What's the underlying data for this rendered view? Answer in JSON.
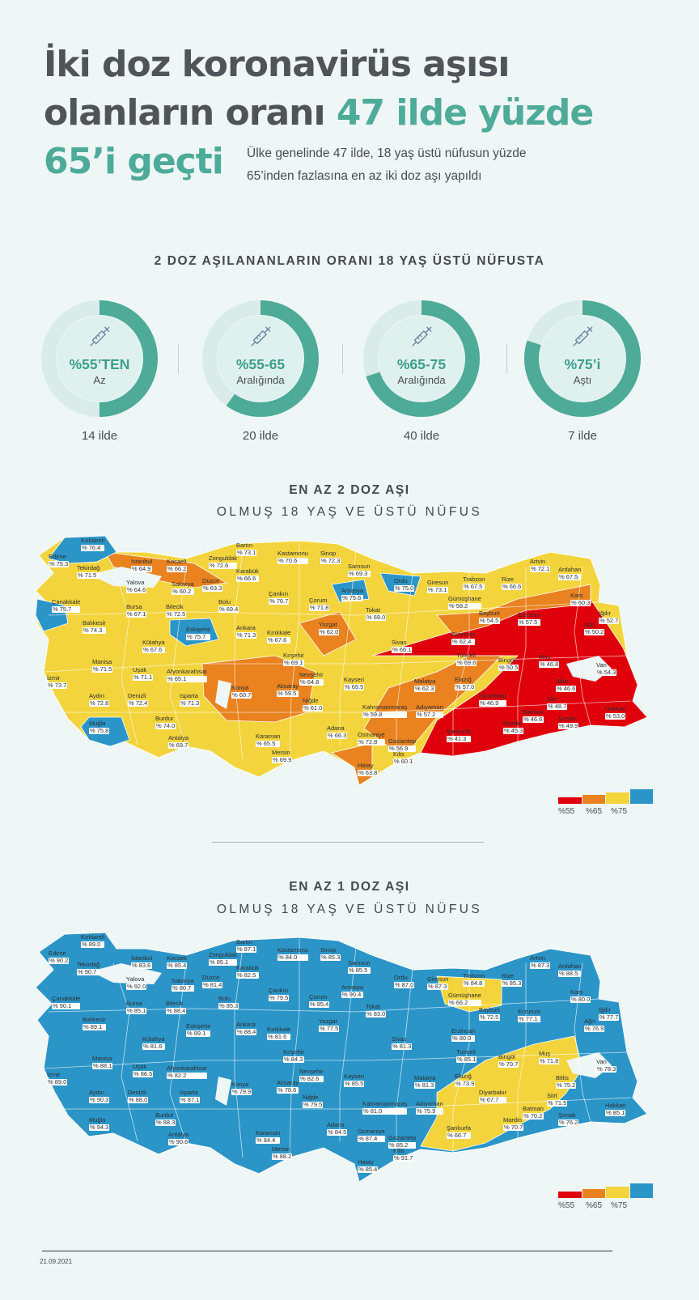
{
  "title": {
    "line1": "İki doz koronavirüs aşısı",
    "line2a": "olanların oranı ",
    "line2b": "47 ilde yüzde",
    "line3": "65’i geçti"
  },
  "lead": "Ülke genelinde 47 ilde, 18 yaş üstü nüfusun yüzde 65’inden fazlasına en az iki doz aşı yapıldı",
  "summary": {
    "title": "2 DOZ AŞILANANLARIN ORANI 18 YAŞ ÜSTÜ NÜFUSTA",
    "items": [
      {
        "pct": "%55’TEN",
        "label": "Az",
        "count": "14 ilde",
        "fill": 0.5
      },
      {
        "pct": "%55-65",
        "label": "Aralığında",
        "count": "20 ilde",
        "fill": 0.6
      },
      {
        "pct": "%65-75",
        "label": "Aralığında",
        "count": "40 ilde",
        "fill": 0.7
      },
      {
        "pct": "%75’i",
        "label": "Aştı",
        "count": "7 ilde",
        "fill": 0.8
      }
    ]
  },
  "map2": {
    "title": "EN AZ 2 DOZ AŞI",
    "subtitle": "OLMUŞ 18 YAŞ VE ÜSTÜ NÜFUS"
  },
  "map1": {
    "title": "EN AZ 1 DOZ AŞI",
    "subtitle": "OLMUŞ 18 YAŞ VE ÜSTÜ NÜFUS"
  },
  "legend": {
    "colors": [
      "#e0000b",
      "#e9821f",
      "#f3d43c",
      "#2b95c8"
    ],
    "ticks": [
      "%55",
      "%65",
      "%75"
    ]
  },
  "colors": {
    "accent": "#4dab98",
    "red": "#e0000b",
    "orange": "#e9821f",
    "yellow": "#f3d43c",
    "blue": "#2b95c8",
    "donut_track": "#d9ecea"
  },
  "date": "21.09.2021",
  "provinces2": [
    {
      "n": "Kırklareli",
      "v": "% 76.4",
      "c": "blue"
    },
    {
      "n": "Edirne",
      "v": "% 75.3",
      "c": "blue"
    },
    {
      "n": "Tekirdağ",
      "v": "% 71.5",
      "c": "yellow"
    },
    {
      "n": "İstanbul",
      "v": "% 64.9",
      "c": "orange"
    },
    {
      "n": "Kocaeli",
      "v": "% 66.2",
      "c": "yellow"
    },
    {
      "n": "Yalova",
      "v": "% 64.6",
      "c": "orange"
    },
    {
      "n": "Sakarya",
      "v": "% 60.2",
      "c": "orange"
    },
    {
      "n": "Düzce",
      "v": "% 63.3",
      "c": "orange"
    },
    {
      "n": "Zonguldak",
      "v": "% 72.6",
      "c": "yellow"
    },
    {
      "n": "Bartın",
      "v": "% 73.1",
      "c": "yellow"
    },
    {
      "n": "Karabük",
      "v": "% 66.6",
      "c": "yellow"
    },
    {
      "n": "Kastamonu",
      "v": "% 70.6",
      "c": "yellow"
    },
    {
      "n": "Sinop",
      "v": "% 72.3",
      "c": "yellow"
    },
    {
      "n": "Samsun",
      "v": "% 69.3",
      "c": "yellow"
    },
    {
      "n": "Ordu",
      "v": "% 75.0",
      "c": "blue"
    },
    {
      "n": "Giresun",
      "v": "% 73.1",
      "c": "yellow"
    },
    {
      "n": "Trabzon",
      "v": "% 67.5",
      "c": "yellow"
    },
    {
      "n": "Rize",
      "v": "% 66.6",
      "c": "yellow"
    },
    {
      "n": "Artvin",
      "v": "% 72.1",
      "c": "yellow"
    },
    {
      "n": "Ardahan",
      "v": "% 67.5",
      "c": "yellow"
    },
    {
      "n": "Çanakkale",
      "v": "% 75.7",
      "c": "blue"
    },
    {
      "n": "Bursa",
      "v": "% 67.1",
      "c": "yellow"
    },
    {
      "n": "Bilecik",
      "v": "% 72.5",
      "c": "yellow"
    },
    {
      "n": "Bolu",
      "v": "% 69.4",
      "c": "yellow"
    },
    {
      "n": "Çankırı",
      "v": "% 70.7",
      "c": "yellow"
    },
    {
      "n": "Çorum",
      "v": "% 71.8",
      "c": "yellow"
    },
    {
      "n": "Amasya",
      "v": "% 75.6",
      "c": "blue"
    },
    {
      "n": "Tokat",
      "v": "% 69.0",
      "c": "yellow"
    },
    {
      "n": "Gümüşhane",
      "v": "% 58.2",
      "c": "orange"
    },
    {
      "n": "Bayburt",
      "v": "% 54.5",
      "c": "red"
    },
    {
      "n": "Erzurum",
      "v": "% 57.5",
      "c": "orange"
    },
    {
      "n": "Kars",
      "v": "% 60.3",
      "c": "orange"
    },
    {
      "n": "Iğdır",
      "v": "% 52.7",
      "c": "red"
    },
    {
      "n": "Ağrı",
      "v": "% 50.2",
      "c": "red"
    },
    {
      "n": "Balıkesir",
      "v": "% 74.3",
      "c": "yellow"
    },
    {
      "n": "Kütahya",
      "v": "% 67.6",
      "c": "yellow"
    },
    {
      "n": "Eskişehir",
      "v": "% 75.7",
      "c": "blue"
    },
    {
      "n": "Ankara",
      "v": "% 71.3",
      "c": "yellow"
    },
    {
      "n": "Kırıkkale",
      "v": "% 67.6",
      "c": "yellow"
    },
    {
      "n": "Yozgat",
      "v": "% 62.0",
      "c": "orange"
    },
    {
      "n": "Sivas",
      "v": "% 66.1",
      "c": "yellow"
    },
    {
      "n": "Erzincan",
      "v": "% 62.4",
      "c": "orange"
    },
    {
      "n": "Tunceli",
      "v": "% 69.6",
      "c": "yellow"
    },
    {
      "n": "Bingöl",
      "v": "% 50.5",
      "c": "red"
    },
    {
      "n": "Muş",
      "v": "% 46.8",
      "c": "red"
    },
    {
      "n": "Van",
      "v": "% 54.3",
      "c": "red"
    },
    {
      "n": "Bitlis",
      "v": "% 46.6",
      "c": "red"
    },
    {
      "n": "Manisa",
      "v": "% 71.5",
      "c": "yellow"
    },
    {
      "n": "İzmir",
      "v": "% 73.7",
      "c": "yellow"
    },
    {
      "n": "Uşak",
      "v": "% 71.1",
      "c": "yellow"
    },
    {
      "n": "Afyonkarahisar",
      "v": "% 65.1",
      "c": "yellow"
    },
    {
      "n": "Kırşehir",
      "v": "% 69.1",
      "c": "yellow"
    },
    {
      "n": "Nevşehir",
      "v": "% 64.8",
      "c": "orange"
    },
    {
      "n": "Aksaray",
      "v": "% 59.5",
      "c": "orange"
    },
    {
      "n": "Kayseri",
      "v": "% 65.5",
      "c": "yellow"
    },
    {
      "n": "Malatya",
      "v": "% 62.3",
      "c": "orange"
    },
    {
      "n": "Elazığ",
      "v": "% 57.0",
      "c": "orange"
    },
    {
      "n": "Diyarbakır",
      "v": "% 46.9",
      "c": "red"
    },
    {
      "n": "Siirt",
      "v": "% 48.7",
      "c": "red"
    },
    {
      "n": "Batman",
      "v": "% 46.6",
      "c": "red"
    },
    {
      "n": "Hakkari",
      "v": "% 53.0",
      "c": "red"
    },
    {
      "n": "Şırnak",
      "v": "% 49.9",
      "c": "red"
    },
    {
      "n": "Mardin",
      "v": "% 45.3",
      "c": "red"
    },
    {
      "n": "Aydın",
      "v": "% 72.8",
      "c": "yellow"
    },
    {
      "n": "Denizli",
      "v": "% 72.4",
      "c": "yellow"
    },
    {
      "n": "Isparta",
      "v": "% 71.3",
      "c": "yellow"
    },
    {
      "n": "Konya",
      "v": "% 60.7",
      "c": "orange"
    },
    {
      "n": "Niğde",
      "v": "% 61.0",
      "c": "orange"
    },
    {
      "n": "Kahramanmaraş",
      "v": "% 59.8",
      "c": "orange"
    },
    {
      "n": "Adıyaman",
      "v": "% 57.2",
      "c": "orange"
    },
    {
      "n": "Şanlıurfa",
      "v": "% 41.3",
      "c": "red"
    },
    {
      "n": "Muğla",
      "v": "% 75.8",
      "c": "blue"
    },
    {
      "n": "Burdur",
      "v": "% 74.0",
      "c": "yellow"
    },
    {
      "n": "Antalya",
      "v": "% 69.7",
      "c": "yellow"
    },
    {
      "n": "Karaman",
      "v": "% 65.5",
      "c": "yellow"
    },
    {
      "n": "Mersin",
      "v": "% 69.9",
      "c": "yellow"
    },
    {
      "n": "Adana",
      "v": "% 66.3",
      "c": "yellow"
    },
    {
      "n": "Osmaniye",
      "v": "% 72.8",
      "c": "yellow"
    },
    {
      "n": "Gaziantep",
      "v": "% 56.9",
      "c": "orange"
    },
    {
      "n": "Kilis",
      "v": "% 60.1",
      "c": "orange"
    },
    {
      "n": "Hatay",
      "v": "% 63.8",
      "c": "orange"
    }
  ],
  "provinces1": [
    {
      "n": "Kırklareli",
      "v": "% 89.0",
      "c": "blue"
    },
    {
      "n": "Edirne",
      "v": "% 90.2",
      "c": "blue"
    },
    {
      "n": "Tekirdağ",
      "v": "% 90.7",
      "c": "blue"
    },
    {
      "n": "İstanbul",
      "v": "% 83.6",
      "c": "blue"
    },
    {
      "n": "Kocaeli",
      "v": "% 85.4",
      "c": "blue"
    },
    {
      "n": "Yalova",
      "v": "% 92.0",
      "c": "blue"
    },
    {
      "n": "Sakarya",
      "v": "% 80.7",
      "c": "blue"
    },
    {
      "n": "Düzce",
      "v": "% 81.4",
      "c": "blue"
    },
    {
      "n": "Zonguldak",
      "v": "% 85.1",
      "c": "blue"
    },
    {
      "n": "Bartın",
      "v": "% 87.1",
      "c": "blue"
    },
    {
      "n": "Karabük",
      "v": "% 82.5",
      "c": "blue"
    },
    {
      "n": "Kastamonu",
      "v": "% 84.0",
      "c": "blue"
    },
    {
      "n": "Sinop",
      "v": "% 85.3",
      "c": "blue"
    },
    {
      "n": "Samsun",
      "v": "% 85.5",
      "c": "blue"
    },
    {
      "n": "Ordu",
      "v": "% 87.0",
      "c": "blue"
    },
    {
      "n": "Giresun",
      "v": "% 87.3",
      "c": "blue"
    },
    {
      "n": "Trabzon",
      "v": "% 84.8",
      "c": "blue"
    },
    {
      "n": "Rize",
      "v": "% 85.3",
      "c": "blue"
    },
    {
      "n": "Artvin",
      "v": "% 87.3",
      "c": "blue"
    },
    {
      "n": "Ardahan",
      "v": "% 88.5",
      "c": "blue"
    },
    {
      "n": "Çanakkale",
      "v": "% 90.1",
      "c": "blue"
    },
    {
      "n": "Bursa",
      "v": "% 85.1",
      "c": "blue"
    },
    {
      "n": "Bilecik",
      "v": "% 88.4",
      "c": "blue"
    },
    {
      "n": "Bolu",
      "v": "% 85.3",
      "c": "blue"
    },
    {
      "n": "Çankırı",
      "v": "% 79.5",
      "c": "blue"
    },
    {
      "n": "Çorum",
      "v": "% 85.4",
      "c": "blue"
    },
    {
      "n": "Amasya",
      "v": "% 90.4",
      "c": "blue"
    },
    {
      "n": "Tokat",
      "v": "% 83.0",
      "c": "blue"
    },
    {
      "n": "Gümüşhane",
      "v": "% 66.2",
      "c": "yellow"
    },
    {
      "n": "Bayburt",
      "v": "% 72.5",
      "c": "yellow"
    },
    {
      "n": "Erzurum",
      "v": "% 77.1",
      "c": "blue"
    },
    {
      "n": "Kars",
      "v": "% 80.0",
      "c": "blue"
    },
    {
      "n": "Iğdır",
      "v": "% 77.7",
      "c": "blue"
    },
    {
      "n": "Ağrı",
      "v": "% 76.9",
      "c": "blue"
    },
    {
      "n": "Balıkesir",
      "v": "% 89.1",
      "c": "blue"
    },
    {
      "n": "Kütahya",
      "v": "% 81.6",
      "c": "blue"
    },
    {
      "n": "Eskişehir",
      "v": "% 89.1",
      "c": "blue"
    },
    {
      "n": "Ankara",
      "v": "% 88.4",
      "c": "blue"
    },
    {
      "n": "Kırıkkale",
      "v": "% 81.6",
      "c": "blue"
    },
    {
      "n": "Yozgat",
      "v": "% 77.5",
      "c": "blue"
    },
    {
      "n": "Sivas",
      "v": "% 81.3",
      "c": "blue"
    },
    {
      "n": "Erzincan",
      "v": "% 80.0",
      "c": "blue"
    },
    {
      "n": "Tunceli",
      "v": "% 85.1",
      "c": "blue"
    },
    {
      "n": "Bingöl",
      "v": "% 70.7",
      "c": "yellow"
    },
    {
      "n": "Muş",
      "v": "% 71.8",
      "c": "yellow"
    },
    {
      "n": "Van",
      "v": "% 78.3",
      "c": "blue"
    },
    {
      "n": "Bitlis",
      "v": "% 75.2",
      "c": "blue"
    },
    {
      "n": "Manisa",
      "v": "% 88.1",
      "c": "blue"
    },
    {
      "n": "İzmir",
      "v": "% 89.0",
      "c": "blue"
    },
    {
      "n": "Uşak",
      "v": "% 86.5",
      "c": "blue"
    },
    {
      "n": "Afyonkarahisar",
      "v": "% 82.2",
      "c": "blue"
    },
    {
      "n": "Kırşehir",
      "v": "% 84.3",
      "c": "blue"
    },
    {
      "n": "Nevşehir",
      "v": "% 82.6",
      "c": "blue"
    },
    {
      "n": "Aksaray",
      "v": "% 78.6",
      "c": "blue"
    },
    {
      "n": "Kayseri",
      "v": "% 85.5",
      "c": "blue"
    },
    {
      "n": "Malatya",
      "v": "% 81.3",
      "c": "blue"
    },
    {
      "n": "Elazığ",
      "v": "% 73.9",
      "c": "yellow"
    },
    {
      "n": "Diyarbakır",
      "v": "% 67.7",
      "c": "yellow"
    },
    {
      "n": "Siirt",
      "v": "% 71.5",
      "c": "yellow"
    },
    {
      "n": "Batman",
      "v": "% 70.2",
      "c": "yellow"
    },
    {
      "n": "Hakkari",
      "v": "% 85.1",
      "c": "blue"
    },
    {
      "n": "Şırnak",
      "v": "% 76.2",
      "c": "blue"
    },
    {
      "n": "Mardin",
      "v": "% 70.7",
      "c": "yellow"
    },
    {
      "n": "Aydın",
      "v": "% 90.3",
      "c": "blue"
    },
    {
      "n": "Denizli",
      "v": "% 88.0",
      "c": "blue"
    },
    {
      "n": "Isparta",
      "v": "% 87.1",
      "c": "blue"
    },
    {
      "n": "Konya",
      "v": "% 79.9",
      "c": "blue"
    },
    {
      "n": "Niğde",
      "v": "% 79.5",
      "c": "blue"
    },
    {
      "n": "Kahramanmaraş",
      "v": "% 81.0",
      "c": "blue"
    },
    {
      "n": "Adıyaman",
      "v": "% 75.9",
      "c": "blue"
    },
    {
      "n": "Şanlıurfa",
      "v": "% 66.7",
      "c": "yellow"
    },
    {
      "n": "Muğla",
      "v": "% 94.3",
      "c": "blue"
    },
    {
      "n": "Burdur",
      "v": "% 88.3",
      "c": "blue"
    },
    {
      "n": "Antalya",
      "v": "% 90.6",
      "c": "blue"
    },
    {
      "n": "Karaman",
      "v": "% 84.4",
      "c": "blue"
    },
    {
      "n": "Mersin",
      "v": "% 88.2",
      "c": "blue"
    },
    {
      "n": "Adana",
      "v": "% 84.5",
      "c": "blue"
    },
    {
      "n": "Osmaniye",
      "v": "% 87.4",
      "c": "blue"
    },
    {
      "n": "Gaziantep",
      "v": "% 85.2",
      "c": "blue"
    },
    {
      "n": "Kilis",
      "v": "% 91.7",
      "c": "blue"
    },
    {
      "n": "Hatay",
      "v": "% 85.4",
      "c": "blue"
    }
  ]
}
